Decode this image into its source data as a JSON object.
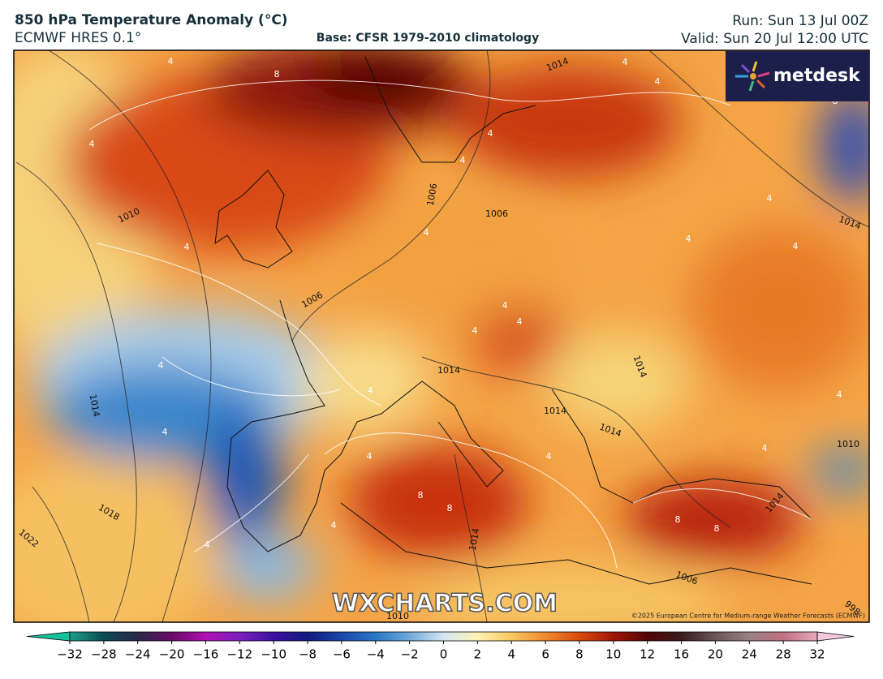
{
  "header": {
    "title": "850 hPa Temperature Anomaly (°C)",
    "model": "ECMWF HRES 0.1°",
    "base": "Base: CFSR 1979-2010 climatology",
    "run": "Run: Sun 13 Jul 00Z",
    "valid": "Valid: Sun 20 Jul 12:00 UTC"
  },
  "logo": "metdesk",
  "watermark": "WXCHARTS.COM",
  "copyright": "©2025 European Centre for Medium-range Weather Forecasts (ECMWF)",
  "map": {
    "isotherm_labels": [
      4,
      8,
      4,
      4,
      4,
      4,
      4,
      4,
      4,
      4,
      4,
      4,
      4,
      4,
      4,
      4,
      4,
      4,
      4,
      8,
      8,
      4,
      4,
      8,
      8,
      4,
      4,
      4,
      8
    ],
    "isobar_labels": [
      1014,
      1010,
      1006,
      1006,
      1014,
      1006,
      1014,
      1014,
      1014,
      1014,
      1014,
      1018,
      1022,
      1014,
      1006,
      1010,
      1010,
      998,
      1014
    ]
  },
  "colorbar": {
    "ticks": [
      {
        "value": -32,
        "label": "−32"
      },
      {
        "value": -28,
        "label": "−28"
      },
      {
        "value": -24,
        "label": "−24"
      },
      {
        "value": -20,
        "label": "−20"
      },
      {
        "value": -16,
        "label": "−16"
      },
      {
        "value": -12,
        "label": "−12"
      },
      {
        "value": -10,
        "label": "−10"
      },
      {
        "value": -8,
        "label": "−8"
      },
      {
        "value": -6,
        "label": "−6"
      },
      {
        "value": -4,
        "label": "−4"
      },
      {
        "value": -2,
        "label": "−2"
      },
      0,
      2,
      4,
      6,
      8,
      10,
      12,
      16,
      20,
      24,
      28,
      32
    ]
  }
}
